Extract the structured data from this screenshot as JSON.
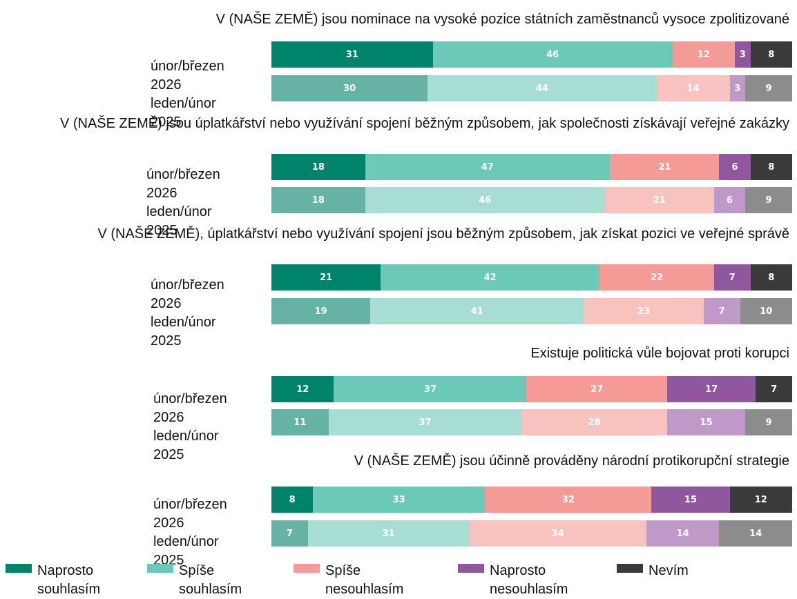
{
  "legend": [
    {
      "name": "Naprosto souhlasím",
      "colors": [
        "#00836b",
        "#66b3a6"
      ]
    },
    {
      "name": "Spíše souhlasím",
      "colors": [
        "#6cc8b7",
        "#a7ddd3"
      ]
    },
    {
      "name": "Spíše nesouhlasím",
      "colors": [
        "#f49b97",
        "#f8c2bf"
      ]
    },
    {
      "name": "Naprosto nesouhlasím",
      "colors": [
        "#91579e",
        "#bf9ac8"
      ]
    },
    {
      "name": "Nevím",
      "colors": [
        "#3a3a3c",
        "#8c8c8c"
      ]
    }
  ],
  "chart_data": [
    {
      "type": "bar",
      "orientation": "horizontal",
      "stacked": true,
      "title": "V (NAŠE ZEMĚ) jsou nominace na vysoké pozice státních zaměstnanců vysoce zpolitizované",
      "categories": [
        "únor/březen 2026",
        "leden/únor 2025"
      ],
      "xlim": [
        0,
        100
      ],
      "series": [
        {
          "values": [
            31,
            30
          ]
        },
        {
          "values": [
            46,
            44
          ]
        },
        {
          "values": [
            12,
            14
          ]
        },
        {
          "values": [
            3,
            3
          ]
        },
        {
          "values": [
            8,
            9
          ]
        }
      ]
    },
    {
      "type": "bar",
      "orientation": "horizontal",
      "stacked": true,
      "title": "V (NAŠE ZEMĚ) jsou úplatkářství nebo využívání spojení běžným způsobem, jak společnosti získávají veřejné zakázky",
      "categories": [
        "únor/březen 2026",
        "leden/únor 2025"
      ],
      "xlim": [
        0,
        100
      ],
      "series": [
        {
          "values": [
            18,
            18
          ]
        },
        {
          "values": [
            47,
            46
          ]
        },
        {
          "values": [
            21,
            21
          ]
        },
        {
          "values": [
            6,
            6
          ]
        },
        {
          "values": [
            8,
            9
          ]
        }
      ]
    },
    {
      "type": "bar",
      "orientation": "horizontal",
      "stacked": true,
      "title": "V (NAŠE ZEMĚ), úplatkářství nebo využívání spojení jsou běžným způsobem, jak získat pozici ve veřejné správě",
      "categories": [
        "únor/březen 2026",
        "leden/únor 2025"
      ],
      "xlim": [
        0,
        100
      ],
      "series": [
        {
          "values": [
            21,
            19
          ]
        },
        {
          "values": [
            42,
            41
          ]
        },
        {
          "values": [
            22,
            23
          ]
        },
        {
          "values": [
            7,
            7
          ]
        },
        {
          "values": [
            8,
            10
          ]
        }
      ]
    },
    {
      "type": "bar",
      "orientation": "horizontal",
      "stacked": true,
      "title": "Existuje politická vůle bojovat proti korupci",
      "categories": [
        "únor/březen 2026",
        "leden/únor 2025"
      ],
      "xlim": [
        0,
        100
      ],
      "series": [
        {
          "values": [
            12,
            11
          ]
        },
        {
          "values": [
            37,
            37
          ]
        },
        {
          "values": [
            27,
            28
          ]
        },
        {
          "values": [
            17,
            15
          ]
        },
        {
          "values": [
            7,
            9
          ]
        }
      ]
    },
    {
      "type": "bar",
      "orientation": "horizontal",
      "stacked": true,
      "title": "V (NAŠE ZEMĚ) jsou účinně prováděny národní protikorupční strategie",
      "categories": [
        "únor/březen 2026",
        "leden/únor 2025"
      ],
      "xlim": [
        0,
        100
      ],
      "series": [
        {
          "values": [
            8,
            7
          ]
        },
        {
          "values": [
            33,
            31
          ]
        },
        {
          "values": [
            32,
            34
          ]
        },
        {
          "values": [
            15,
            14
          ]
        },
        {
          "values": [
            12,
            14
          ]
        }
      ]
    }
  ]
}
